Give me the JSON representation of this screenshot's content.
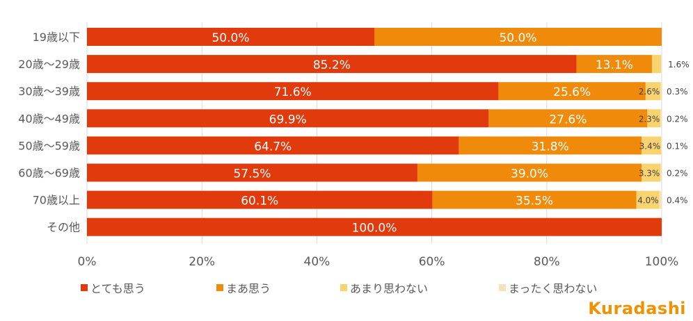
{
  "chart_data": {
    "type": "bar",
    "orientation": "horizontal",
    "stacked": true,
    "categories": [
      "19歳以下",
      "20歳～29歳",
      "30歳～39歳",
      "40歳～49歳",
      "50歳～59歳",
      "60歳～69歳",
      "70歳以上",
      "その他"
    ],
    "series": [
      {
        "name": "とても思う",
        "color": "#e03a0d",
        "values": [
          50.0,
          85.2,
          71.6,
          69.9,
          64.7,
          57.5,
          60.1,
          100.0
        ],
        "labels": [
          "50.0%",
          "85.2%",
          "71.6%",
          "69.9%",
          "64.7%",
          "57.5%",
          "60.1%",
          "100.0%"
        ]
      },
      {
        "name": "まあ思う",
        "color": "#ef8a0a",
        "values": [
          50.0,
          13.1,
          25.6,
          27.6,
          31.8,
          39.0,
          35.5,
          0
        ],
        "labels": [
          "50.0%",
          "13.1%",
          "25.6%",
          "27.6%",
          "31.8%",
          "39.0%",
          "35.5%",
          ""
        ]
      },
      {
        "name": "あまり思わない",
        "color": "#f9d36f",
        "values": [
          0,
          1.6,
          2.6,
          2.3,
          3.4,
          3.3,
          4.0,
          0
        ],
        "labels": [
          "",
          "1.6%",
          "2.6%",
          "2.3%",
          "3.4%",
          "3.3%",
          "4.0%",
          ""
        ]
      },
      {
        "name": "まったく思わない",
        "color": "#f6e2bd",
        "values": [
          0,
          0,
          0.3,
          0.2,
          0.1,
          0.2,
          0.4,
          0
        ],
        "labels": [
          "",
          "",
          "0.3%",
          "0.2%",
          "0.1%",
          "0.2%",
          "0.4%",
          ""
        ]
      }
    ],
    "xlim": [
      0,
      100
    ],
    "xticks": [
      "0%",
      "20%",
      "40%",
      "60%",
      "80%",
      "100%"
    ],
    "grid": true,
    "legend_position": "bottom"
  },
  "brand": "Kuradashi"
}
